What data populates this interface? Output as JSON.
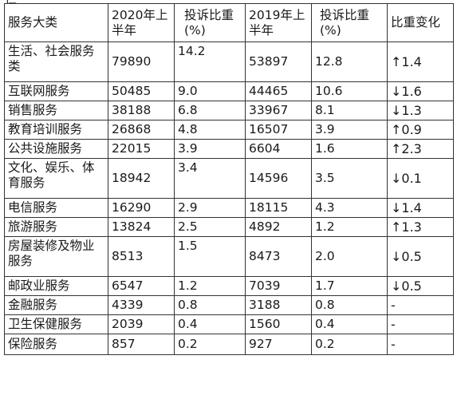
{
  "top_fragment": "仁",
  "table": {
    "headers": [
      "服务大类",
      "2020年上半年",
      "投诉比重(%)",
      "2019年上半年",
      "投诉比重(%)",
      "比重变化"
    ],
    "rows": [
      {
        "category": "生活、社会服务类",
        "h1_2020": "79890",
        "share_2020": "14.2",
        "h1_2019": "53897",
        "share_2019": "12.8",
        "change": "↑1.4"
      },
      {
        "category": "互联网服务",
        "h1_2020": "50485",
        "share_2020": "9.0",
        "h1_2019": "44465",
        "share_2019": "10.6",
        "change": "↓1.6"
      },
      {
        "category": "销售服务",
        "h1_2020": "38188",
        "share_2020": "6.8",
        "h1_2019": "33967",
        "share_2019": "8.1",
        "change": "↓1.3"
      },
      {
        "category": "教育培训服务",
        "h1_2020": "26868",
        "share_2020": "4.8",
        "h1_2019": "16507",
        "share_2019": "3.9",
        "change": "↑0.9"
      },
      {
        "category": "公共设施服务",
        "h1_2020": "22015",
        "share_2020": "3.9",
        "h1_2019": "6604",
        "share_2019": "1.6",
        "change": "↑2.3"
      },
      {
        "category": "文化、娱乐、体育服务",
        "h1_2020": "18942",
        "share_2020": "3.4",
        "h1_2019": "14596",
        "share_2019": "3.5",
        "change": "↓0.1"
      },
      {
        "category": "电信服务",
        "h1_2020": "16290",
        "share_2020": "2.9",
        "h1_2019": "18115",
        "share_2019": "4.3",
        "change": "↓1.4"
      },
      {
        "category": "旅游服务",
        "h1_2020": "13824",
        "share_2020": "2.5",
        "h1_2019": "4892",
        "share_2019": "1.2",
        "change": "↑1.3"
      },
      {
        "category": "房屋装修及物业服务",
        "h1_2020": "8513",
        "share_2020": "1.5",
        "h1_2019": "8473",
        "share_2019": "2.0",
        "change": "↓0.5"
      },
      {
        "category": "邮政业服务",
        "h1_2020": "6547",
        "share_2020": "1.2",
        "h1_2019": "7039",
        "share_2019": "1.7",
        "change": "↓0.5"
      },
      {
        "category": "金融服务",
        "h1_2020": "4339",
        "share_2020": "0.8",
        "h1_2019": "3188",
        "share_2019": "0.8",
        "change": "-"
      },
      {
        "category": "卫生保健服务",
        "h1_2020": "2039",
        "share_2020": "0.4",
        "h1_2019": "1560",
        "share_2019": "0.4",
        "change": "-"
      },
      {
        "category": "保险服务",
        "h1_2020": "857",
        "share_2020": "0.2",
        "h1_2019": "927",
        "share_2019": "0.2",
        "change": "-"
      }
    ]
  }
}
